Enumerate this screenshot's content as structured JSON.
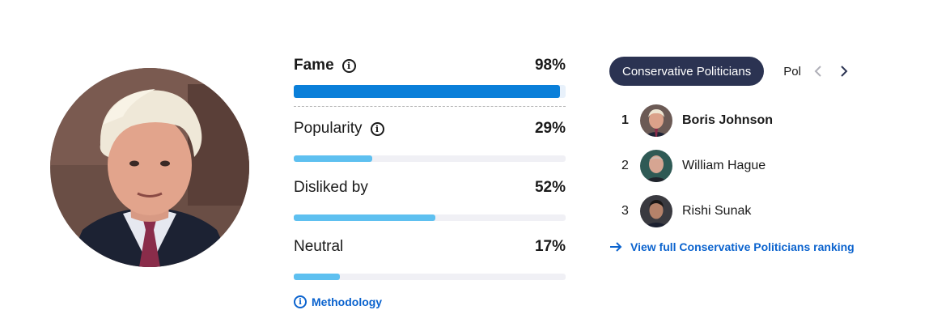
{
  "profile": {
    "photo_alt": "Boris Johnson portrait"
  },
  "metrics": {
    "fame": {
      "label": "Fame",
      "value_text": "98%",
      "value": 0.98
    },
    "popularity": {
      "label": "Popularity",
      "value_text": "29%",
      "value": 0.29
    },
    "disliked": {
      "label": "Disliked by",
      "value_text": "52%",
      "value": 0.52
    },
    "neutral": {
      "label": "Neutral",
      "value_text": "17%",
      "value": 0.17
    },
    "methodology_label": "Methodology"
  },
  "ranking": {
    "active_tab": "Conservative Politicians",
    "next_tab_partial": "Pol",
    "items": [
      {
        "rank": "1",
        "name": "Boris Johnson"
      },
      {
        "rank": "2",
        "name": "William Hague"
      },
      {
        "rank": "3",
        "name": "Rishi Sunak"
      }
    ],
    "full_link_label": "View full Conservative Politicians ranking"
  },
  "icons": {
    "info": "info-icon",
    "prev": "chevron-left-icon",
    "next": "chevron-right-icon",
    "link": "arrow-right-icon"
  },
  "colors": {
    "fame_bar": "#0a7fd9",
    "bar": "#5ec0f0",
    "tab_active_bg": "#2b3352",
    "link": "#0b63ce"
  }
}
